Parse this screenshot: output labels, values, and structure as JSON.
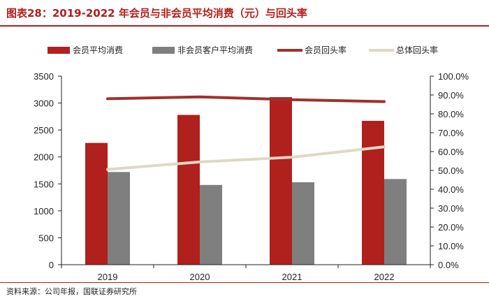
{
  "header": {
    "title": "图表28：2019-2022 年会员与非会员平均消费（元）与回头率"
  },
  "footer": {
    "source": "资料来源：公司年报，国联证券研究所"
  },
  "colors": {
    "member": "#b0201c",
    "nonmember": "#7f7f7f",
    "member_rate": "#a0302c",
    "overall_rate": "#ddd9c4",
    "frame": "#b0201c"
  },
  "chart_data": {
    "type": "bar",
    "title": "2019-2022 年会员与非会员平均消费（元）与回头率",
    "categories": [
      "2019",
      "2020",
      "2021",
      "2022"
    ],
    "series": [
      {
        "name": "会员平均消费",
        "kind": "bar",
        "axis": "left",
        "values": [
          2260,
          2780,
          3110,
          2670
        ]
      },
      {
        "name": "非会员客户平均消费",
        "kind": "bar",
        "axis": "left",
        "values": [
          1720,
          1480,
          1530,
          1590
        ]
      },
      {
        "name": "会员回头率",
        "kind": "line",
        "axis": "right",
        "values": [
          88.0,
          89.0,
          87.5,
          86.5
        ]
      },
      {
        "name": "总体回头率",
        "kind": "line",
        "axis": "right",
        "values": [
          50.5,
          54.5,
          57.0,
          62.5
        ]
      }
    ],
    "ylim": [
      0,
      3500
    ],
    "yticks": [
      "0",
      "500",
      "1000",
      "1500",
      "2000",
      "2500",
      "3000",
      "3500"
    ],
    "y2lim": [
      0,
      100
    ],
    "y2ticks": [
      "0.0%",
      "10.0%",
      "20.0%",
      "30.0%",
      "40.0%",
      "50.0%",
      "60.0%",
      "70.0%",
      "80.0%",
      "90.0%",
      "100.0%"
    ],
    "legend_position": "top"
  }
}
